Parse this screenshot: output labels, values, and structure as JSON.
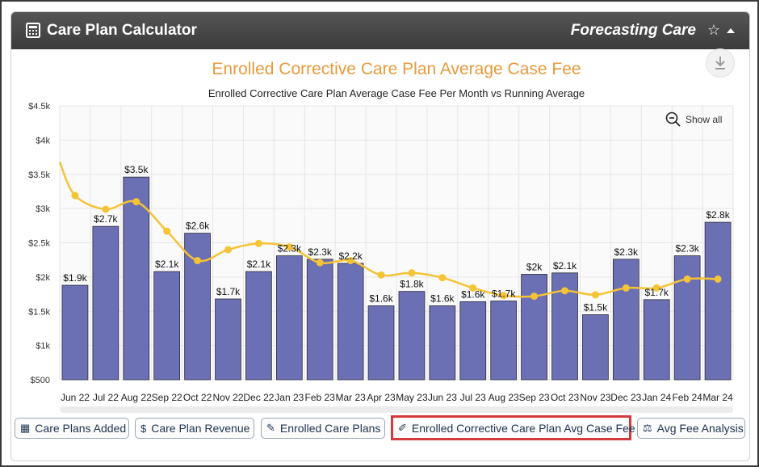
{
  "header": {
    "title": "Care Plan Calculator",
    "subtitle": "Forecasting Care",
    "star": "☆"
  },
  "chart": {
    "show_all": "Show all"
  },
  "chart_data": {
    "type": "bar",
    "title": "Enrolled Corrective Care Plan Average Case Fee",
    "subtitle": "Enrolled Corrective Care Plan Average Case Fee Per Month vs Running Average",
    "xlabel": "",
    "ylabel": "",
    "ylim": [
      500,
      4500
    ],
    "yticks": [
      "$500",
      "$1k",
      "$1.5k",
      "$2k",
      "$2.5k",
      "$3k",
      "$3.5k",
      "$4k",
      "$4.5k"
    ],
    "ytick_values": [
      500,
      1000,
      1500,
      2000,
      2500,
      3000,
      3500,
      4000,
      4500
    ],
    "categories": [
      "Jun 22",
      "Jul 22",
      "Aug 22",
      "Sep 22",
      "Oct 22",
      "Nov 22",
      "Dec 22",
      "Jan 23",
      "Feb 23",
      "Mar 23",
      "Apr 23",
      "May 23",
      "Jun 23",
      "Jul 23",
      "Aug 23",
      "Sep 23",
      "Oct 23",
      "Nov 23",
      "Dec 23",
      "Jan 24",
      "Feb 24",
      "Mar 24"
    ],
    "series": [
      {
        "type": "bar",
        "values": [
          1880,
          2740,
          3460,
          2080,
          2640,
          1680,
          2080,
          2310,
          2260,
          2200,
          1580,
          1790,
          1580,
          1640,
          1650,
          2040,
          2060,
          1450,
          2260,
          1670,
          2310,
          2800
        ],
        "data_labels": [
          "$1.9k",
          "$2.7k",
          "$3.5k",
          "$2.1k",
          "$2.6k",
          "$1.7k",
          "$2.1k",
          "$2.3k",
          "$2.3k",
          "$2.2k",
          "$1.6k",
          "$1.8k",
          "$1.6k",
          "$1.6k",
          "$1.7k",
          "$2k",
          "$2.1k",
          "$1.5k",
          "$2.3k",
          "$1.7k",
          "$2.3k",
          "$2.8k"
        ],
        "color": "#6b6fb3"
      },
      {
        "type": "line",
        "values": [
          3190,
          2990,
          3100,
          2670,
          2240,
          2400,
          2490,
          2440,
          2210,
          2240,
          2030,
          2060,
          1990,
          1840,
          1730,
          1720,
          1800,
          1740,
          1840,
          1840,
          1970,
          1970
        ],
        "color": "#f5c336"
      }
    ],
    "grid": true,
    "legend": "none"
  },
  "footer": {
    "buttons": [
      {
        "label": "Care Plans Added",
        "icon": "calculator-icon",
        "glyph": "▦"
      },
      {
        "label": "Care Plan Revenue",
        "icon": "dollar-icon",
        "glyph": "$"
      },
      {
        "label": "Enrolled Care Plans",
        "icon": "pencil-icon",
        "glyph": "✎"
      },
      {
        "label": "Enrolled Corrective Care Plan Avg Case Fee",
        "icon": "eraser-icon",
        "glyph": "✐"
      },
      {
        "label": "Avg Fee Analysis",
        "icon": "balance-scale-icon",
        "glyph": "⚖"
      }
    ]
  },
  "colors": {
    "accent_title": "#e89a3c",
    "bar": "#6b6fb3",
    "line": "#f5c336",
    "header_bg": "#444444",
    "active_border": "#d63a3a"
  }
}
